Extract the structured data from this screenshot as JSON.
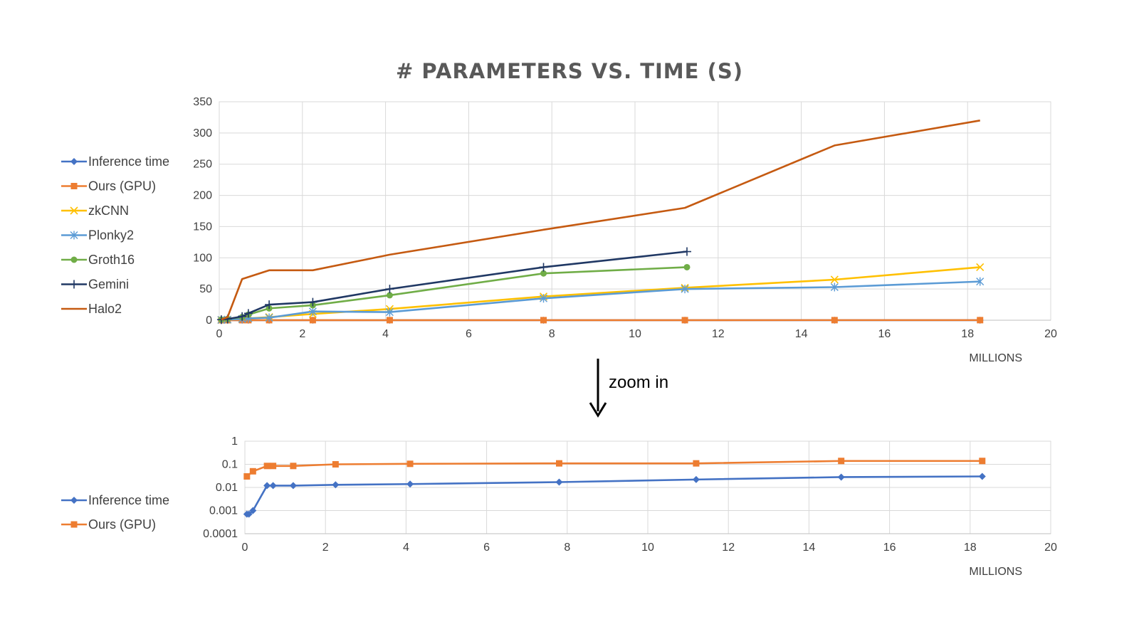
{
  "chart_data": [
    {
      "type": "line",
      "title": "# PARAMETERS VS. TIME (S)",
      "x_units_label": "MILLIONS",
      "xlim": [
        0,
        20
      ],
      "ylim": [
        0,
        350
      ],
      "x_ticks": [
        "0",
        "2",
        "4",
        "6",
        "8",
        "10",
        "12",
        "14",
        "16",
        "18",
        "20"
      ],
      "y_ticks": [
        "0",
        "50",
        "100",
        "150",
        "200",
        "250",
        "300",
        "350"
      ],
      "grid": true,
      "legend_position": "left",
      "series": [
        {
          "name": "Inference time",
          "color": "#4472C4",
          "marker": "diamond",
          "x": [
            0.05,
            0.1,
            0.2,
            0.55,
            0.7,
            1.2,
            2.25,
            4.1,
            7.8,
            11.2,
            14.8,
            18.3
          ],
          "y": [
            0.0007,
            0.0007,
            0.001,
            0.012,
            0.012,
            0.012,
            0.013,
            0.014,
            0.017,
            0.022,
            0.028,
            0.03
          ]
        },
        {
          "name": "Ours (GPU)",
          "color": "#ED7D31",
          "marker": "square",
          "x": [
            0.05,
            0.2,
            0.55,
            0.7,
            1.2,
            2.25,
            4.1,
            7.8,
            11.2,
            14.8,
            18.3
          ],
          "y": [
            0.03,
            0.05,
            0.085,
            0.085,
            0.085,
            0.1,
            0.105,
            0.11,
            0.11,
            0.14,
            0.14
          ]
        },
        {
          "name": "zkCNN",
          "color": "#FFC000",
          "marker": "x",
          "x": [
            0.05,
            0.2,
            0.55,
            0.7,
            1.2,
            2.25,
            4.1,
            7.8,
            11.2,
            14.8,
            18.3
          ],
          "y": [
            0.5,
            1,
            2,
            3,
            5,
            10,
            18,
            38,
            52,
            65,
            85
          ]
        },
        {
          "name": "Plonky2",
          "color": "#5B9BD5",
          "marker": "asterisk",
          "x": [
            0.05,
            0.2,
            0.55,
            0.7,
            1.2,
            2.25,
            4.1,
            7.8,
            11.2,
            14.8,
            18.3
          ],
          "y": [
            0.5,
            1,
            2,
            3,
            4,
            14,
            13,
            35,
            50,
            53,
            62
          ]
        },
        {
          "name": "Groth16",
          "color": "#70AD47",
          "marker": "circle",
          "x": [
            0.05,
            0.2,
            0.55,
            0.7,
            1.2,
            2.25,
            4.1,
            7.8,
            11.25
          ],
          "y": [
            1,
            2,
            5,
            9,
            19,
            24,
            40,
            75,
            85
          ]
        },
        {
          "name": "Gemini",
          "color": "#203864",
          "marker": "plus",
          "x": [
            0.05,
            0.2,
            0.55,
            0.7,
            1.2,
            2.25,
            4.1,
            7.8,
            11.25
          ],
          "y": [
            1,
            2,
            6,
            11,
            25,
            29,
            50,
            85,
            110
          ]
        },
        {
          "name": "Halo2",
          "color": "#C55A11",
          "marker": "none",
          "x": [
            0.05,
            0.2,
            0.55,
            1.2,
            2.25,
            4.1,
            7.8,
            11.2,
            14.8,
            18.3
          ],
          "y": [
            1,
            5,
            66,
            80,
            80,
            105,
            145,
            180,
            280,
            320
          ]
        }
      ]
    },
    {
      "type": "line",
      "title": "",
      "x_units_label": "MILLIONS",
      "xlim": [
        0,
        20
      ],
      "ylim": [
        0.0001,
        1
      ],
      "y_scale": "log",
      "x_ticks": [
        "0",
        "2",
        "4",
        "6",
        "8",
        "10",
        "12",
        "14",
        "16",
        "18",
        "20"
      ],
      "y_ticks": [
        "1",
        "0.1",
        "0.01",
        "0.001",
        "0.0001"
      ],
      "grid": true,
      "legend_position": "left",
      "series": [
        {
          "name": "Inference time",
          "color": "#4472C4",
          "marker": "diamond",
          "x": [
            0.05,
            0.1,
            0.2,
            0.55,
            0.7,
            1.2,
            2.25,
            4.1,
            7.8,
            11.2,
            14.8,
            18.3
          ],
          "y": [
            0.0007,
            0.0007,
            0.001,
            0.012,
            0.012,
            0.012,
            0.013,
            0.014,
            0.017,
            0.022,
            0.028,
            0.03
          ]
        },
        {
          "name": "Ours (GPU)",
          "color": "#ED7D31",
          "marker": "square",
          "x": [
            0.05,
            0.2,
            0.55,
            0.7,
            1.2,
            2.25,
            4.1,
            7.8,
            11.2,
            14.8,
            18.3
          ],
          "y": [
            0.03,
            0.05,
            0.085,
            0.085,
            0.085,
            0.1,
            0.105,
            0.11,
            0.11,
            0.14,
            0.14
          ]
        }
      ]
    }
  ],
  "annotation": {
    "zoom_label": "zoom in"
  },
  "colors": {
    "grid": "#d9d9d9",
    "axis": "#bfbfbf",
    "arrow": "#000000"
  }
}
